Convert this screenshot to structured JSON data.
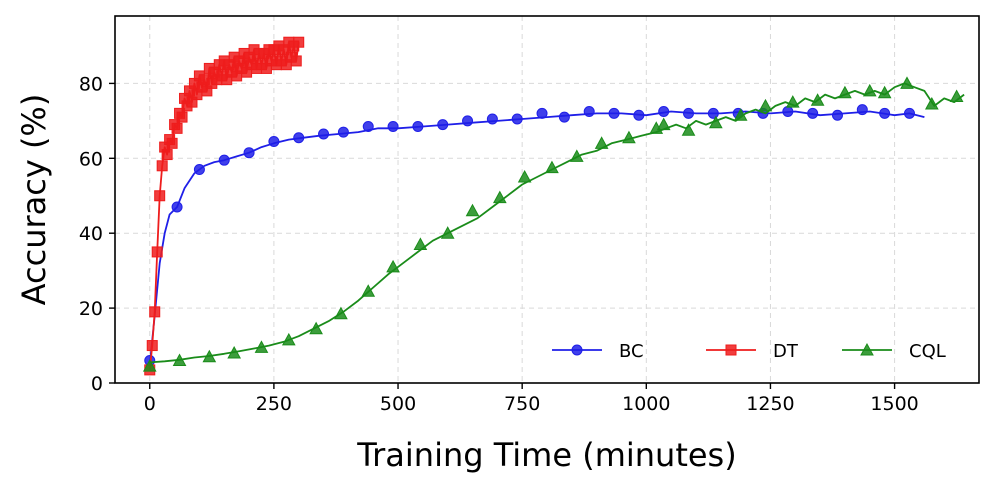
{
  "chart_data": {
    "type": "line",
    "xlabel": "Training Time (minutes)",
    "ylabel": "Accuracy (%)",
    "xlim": [
      -70,
      1670
    ],
    "ylim": [
      0,
      98
    ],
    "xticks": [
      0,
      250,
      500,
      750,
      1000,
      1250,
      1500
    ],
    "yticks": [
      0,
      20,
      40,
      60,
      80
    ],
    "grid": true,
    "legend_position": "bottom-right",
    "series": [
      {
        "name": "BC",
        "color": "#1f1fe8",
        "marker": "circle",
        "x": [
          0,
          10,
          20,
          30,
          40,
          55,
          70,
          90,
          110,
          130,
          150,
          175,
          200,
          225,
          250,
          280,
          310,
          340,
          380,
          420,
          460,
          500,
          550,
          600,
          650,
          700,
          750,
          800,
          850,
          900,
          950,
          1000,
          1050,
          1100,
          1150,
          1200,
          1250,
          1300,
          1350,
          1400,
          1450,
          1500,
          1530,
          1560
        ],
        "y": [
          5,
          18,
          32,
          40,
          45,
          47,
          52,
          56,
          58,
          59,
          59.5,
          60.5,
          61.5,
          63,
          64,
          65,
          65.5,
          66,
          66.5,
          67,
          68,
          68,
          68.5,
          69,
          69.5,
          70,
          70.5,
          71,
          71.5,
          72,
          72,
          71.5,
          72.5,
          72,
          72,
          72.5,
          72,
          72.5,
          71.5,
          72,
          72.5,
          71.5,
          72,
          71
        ],
        "markers_x": [
          0,
          55,
          100,
          150,
          200,
          250,
          300,
          350,
          390,
          440,
          490,
          540,
          590,
          640,
          690,
          740,
          790,
          835,
          885,
          935,
          985,
          1035,
          1085,
          1135,
          1185,
          1235,
          1285,
          1335,
          1385,
          1435,
          1480,
          1530
        ],
        "markers_y": [
          6,
          47,
          57,
          59.5,
          61.5,
          64.5,
          65.5,
          66.5,
          67,
          68.5,
          68.5,
          68.5,
          69,
          70,
          70.5,
          70.5,
          72,
          71,
          72.5,
          72,
          71.5,
          72.5,
          72,
          72,
          72,
          72,
          72.5,
          72,
          71.5,
          73,
          72,
          72
        ]
      },
      {
        "name": "DT",
        "color": "#ee1c1c",
        "marker": "square",
        "x": [
          0,
          5,
          10,
          15,
          20,
          25,
          30,
          35,
          40,
          45,
          50,
          55,
          60,
          65,
          70,
          75,
          80,
          85,
          90,
          95,
          100,
          105,
          110,
          115,
          120,
          125,
          130,
          135,
          140,
          145,
          150,
          155,
          160,
          165,
          170,
          175,
          180,
          185,
          190,
          195,
          200,
          205,
          210,
          215,
          220,
          225,
          230,
          235,
          240,
          245,
          250,
          255,
          260,
          265,
          270,
          275,
          280,
          285,
          290,
          295,
          300
        ],
        "y": [
          3.5,
          10,
          19,
          35,
          50,
          58,
          63,
          61,
          65,
          64,
          69,
          68,
          72,
          71,
          76,
          74,
          78,
          75,
          80,
          77,
          82,
          79,
          81,
          78,
          84,
          80,
          83,
          81,
          85,
          82,
          86,
          81,
          85,
          83,
          87,
          82,
          86,
          84,
          88,
          83,
          87,
          85,
          89,
          84,
          88,
          85,
          88,
          84,
          89,
          86,
          89,
          85,
          90,
          86,
          89,
          85,
          91,
          87,
          90,
          86,
          91
        ]
      },
      {
        "name": "CQL",
        "color": "#1a8c1a",
        "marker": "triangle",
        "x": [
          0,
          30,
          60,
          90,
          120,
          150,
          180,
          210,
          240,
          270,
          300,
          330,
          360,
          390,
          420,
          450,
          480,
          510,
          540,
          570,
          600,
          630,
          660,
          690,
          720,
          750,
          780,
          810,
          840,
          870,
          900,
          930,
          960,
          990,
          1020,
          1040,
          1060,
          1080,
          1100,
          1120,
          1140,
          1160,
          1180,
          1200,
          1220,
          1240,
          1260,
          1280,
          1300,
          1320,
          1340,
          1360,
          1380,
          1400,
          1420,
          1440,
          1460,
          1480,
          1500,
          1520,
          1540,
          1560,
          1580,
          1600,
          1620,
          1640
        ],
        "y": [
          5.5,
          5.8,
          6.2,
          6.8,
          7.2,
          7.8,
          8.5,
          9.2,
          10,
          11,
          12.5,
          14.5,
          16.5,
          19,
          22,
          25.5,
          29,
          32,
          35,
          38,
          40,
          42,
          44,
          47,
          50,
          53,
          55,
          57,
          59,
          61,
          62,
          64,
          65,
          66,
          67,
          68,
          69,
          68,
          70,
          69,
          70,
          71,
          70,
          72,
          73,
          72,
          74,
          75,
          74,
          76,
          75,
          77,
          76,
          77,
          78,
          77,
          78,
          77,
          79,
          80,
          79,
          78,
          74,
          76,
          75,
          77
        ],
        "markers_x": [
          0,
          60,
          120,
          170,
          225,
          280,
          335,
          385,
          440,
          490,
          545,
          600,
          650,
          705,
          755,
          810,
          860,
          910,
          965,
          1020,
          1035,
          1085,
          1140,
          1190,
          1240,
          1295,
          1345,
          1400,
          1450,
          1480,
          1525,
          1575,
          1625
        ],
        "markers_y": [
          4.5,
          6,
          7,
          8,
          9.5,
          11.5,
          14.5,
          18.5,
          24.5,
          31,
          37,
          40,
          46,
          49.5,
          55,
          57.5,
          60.5,
          64,
          65.5,
          68,
          69,
          67.5,
          69.5,
          71.5,
          74,
          75,
          75.5,
          77.5,
          78,
          77.5,
          80,
          74.5,
          76.5
        ]
      }
    ]
  }
}
